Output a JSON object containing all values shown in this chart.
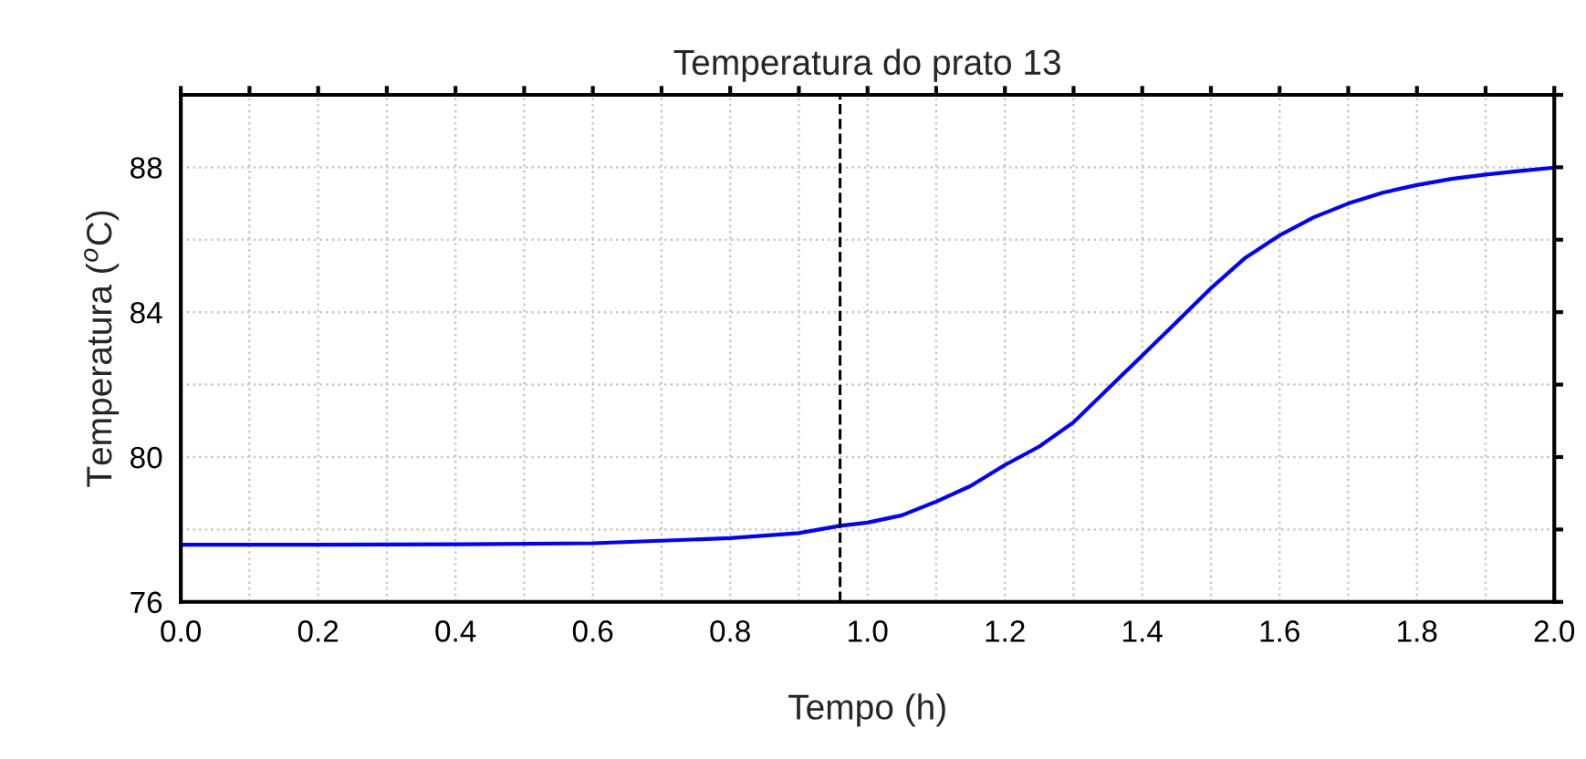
{
  "chart_data": {
    "type": "line",
    "title": "Temperatura do prato 13",
    "xlabel": "Tempo (h)",
    "ylabel": "Temperatura ($^{o}$C)",
    "x": [
      0.0,
      0.2,
      0.4,
      0.6,
      0.8,
      0.9,
      0.96,
      1.0,
      1.05,
      1.1,
      1.15,
      1.2,
      1.25,
      1.3,
      1.35,
      1.4,
      1.45,
      1.5,
      1.55,
      1.6,
      1.65,
      1.7,
      1.75,
      1.8,
      1.85,
      1.9,
      1.95,
      2.0
    ],
    "series": [
      {
        "color": "#0000ff",
        "values": [
          77.58,
          77.58,
          77.59,
          77.62,
          77.76,
          77.9,
          78.1,
          78.19,
          78.39,
          78.77,
          79.2,
          79.78,
          80.29,
          80.96,
          81.88,
          82.8,
          83.73,
          84.66,
          85.5,
          86.12,
          86.62,
          87.0,
          87.3,
          87.51,
          87.68,
          87.8,
          87.9,
          87.99
        ]
      }
    ],
    "xlim": [
      0.0,
      2.0
    ],
    "ylim": [
      76,
      90
    ],
    "xticks": [
      {
        "value": 0.0,
        "label": "0.0"
      },
      {
        "value": 0.1,
        "label": null
      },
      {
        "value": 0.2,
        "label": "0.2"
      },
      {
        "value": 0.3,
        "label": null
      },
      {
        "value": 0.4,
        "label": "0.4"
      },
      {
        "value": 0.5,
        "label": null
      },
      {
        "value": 0.6,
        "label": "0.6"
      },
      {
        "value": 0.7,
        "label": null
      },
      {
        "value": 0.8,
        "label": "0.8"
      },
      {
        "value": 0.9,
        "label": null
      },
      {
        "value": 1.0,
        "label": "1.0"
      },
      {
        "value": 1.1,
        "label": null
      },
      {
        "value": 1.2,
        "label": "1.2"
      },
      {
        "value": 1.3,
        "label": null
      },
      {
        "value": 1.4,
        "label": "1.4"
      },
      {
        "value": 1.5,
        "label": null
      },
      {
        "value": 1.6,
        "label": "1.6"
      },
      {
        "value": 1.7,
        "label": null
      },
      {
        "value": 1.8,
        "label": "1.8"
      },
      {
        "value": 1.9,
        "label": null
      },
      {
        "value": 2.0,
        "label": "2.0"
      }
    ],
    "yticks": [
      76,
      {
        "value": 78,
        "label": null
      },
      80,
      {
        "value": 82,
        "label": null
      },
      84,
      {
        "value": 86,
        "label": null
      },
      88,
      {
        "value": 90,
        "label": null
      }
    ],
    "grid": true,
    "line_style": "solid",
    "marker": "none",
    "ref_lines": [
      {
        "axis": "x",
        "value": 0.96,
        "color": "#000000",
        "line_style": "dashed"
      }
    ]
  }
}
